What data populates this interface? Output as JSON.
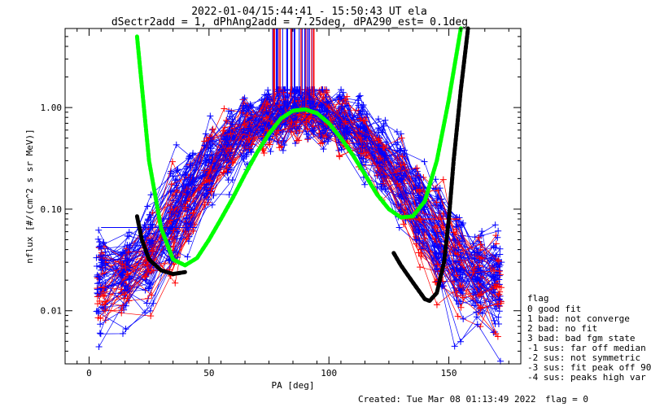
{
  "title_line1": "2022-01-04/15:44:41 - 15:50:43 UT ela",
  "title_line2": "dSectr2add = 1, dPhAng2add = 7.25deg, dPA290_est=   0.1deg",
  "footer_created": "Created: Tue Mar 08 01:13:49 2022",
  "footer_flag": "flag = 0",
  "colors": {
    "fit_good": "#0000ff",
    "fit_bad": "#ff0000",
    "model_green": "#00ff00",
    "model_black": "#000000"
  },
  "legend": {
    "title": "flag",
    "items": [
      " 0 good fit",
      " 1 bad: not converge",
      " 2 bad: no fit",
      " 3 bad: bad fgm state",
      "-1 sus: far off median",
      "-2 sus: not symmetric",
      "-3 sus: fit peak off 90",
      "-4 sus: peaks high var"
    ]
  },
  "chart_data": {
    "type": "line",
    "xlabel": "PA [deg]",
    "ylabel": "nflux [#/(cm^2 s sr MeV)]",
    "xlim": [
      -10,
      180
    ],
    "ylim": [
      0.003,
      6
    ],
    "yscale": "log",
    "x_ticks": [
      0,
      50,
      100,
      150
    ],
    "x_tick_labels": [
      "0",
      "50",
      "100",
      "150"
    ],
    "y_ticks": [
      0.01,
      0.1,
      1.0
    ],
    "y_tick_labels": [
      "0.01",
      "0.10",
      "1.00"
    ],
    "series": [
      {
        "color": "green",
        "style": "thick dashed",
        "x": [
          20,
          25,
          30,
          35,
          40,
          45,
          50,
          55,
          60,
          65,
          70,
          75,
          80,
          85,
          90,
          95,
          100,
          105,
          110,
          115,
          120,
          125,
          130,
          135,
          140,
          145,
          150,
          155
        ],
        "y": [
          5,
          0.3,
          0.065,
          0.032,
          0.028,
          0.033,
          0.05,
          0.08,
          0.13,
          0.22,
          0.36,
          0.55,
          0.78,
          0.93,
          0.96,
          0.88,
          0.7,
          0.5,
          0.34,
          0.22,
          0.14,
          0.1,
          0.083,
          0.085,
          0.12,
          0.3,
          1.2,
          6
        ]
      },
      {
        "color": "black",
        "style": "thick dashed",
        "x": [
          20,
          22,
          25,
          30,
          35,
          40
        ],
        "y": [
          0.085,
          0.05,
          0.032,
          0.025,
          0.023,
          0.024
        ]
      },
      {
        "color": "black",
        "style": "thick dashed",
        "x": [
          127,
          130,
          135,
          140,
          142,
          145,
          148,
          150,
          152,
          155,
          158
        ],
        "y": [
          0.037,
          0.028,
          0.019,
          0.013,
          0.0125,
          0.015,
          0.03,
          0.08,
          0.3,
          1.5,
          6
        ]
      }
    ]
  }
}
